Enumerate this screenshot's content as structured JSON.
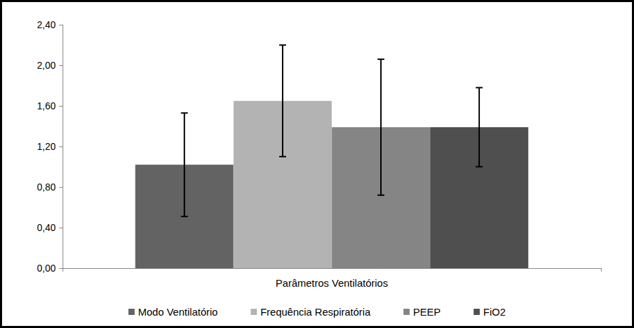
{
  "chart_data": {
    "type": "bar",
    "categories": [
      "Parâmetros Ventilatórios"
    ],
    "series": [
      {
        "name": "Modo Ventilatório",
        "color": "#636363",
        "values": [
          1.02
        ],
        "error": [
          0.51
        ]
      },
      {
        "name": "Frequência Respiratória",
        "color": "#b3b3b3",
        "values": [
          1.65
        ],
        "error": [
          0.55
        ]
      },
      {
        "name": "PEEP",
        "color": "#858585",
        "values": [
          1.39
        ],
        "error": [
          0.67
        ]
      },
      {
        "name": "FiO2",
        "color": "#4f4f4f",
        "values": [
          1.39
        ],
        "error": [
          0.39
        ]
      }
    ],
    "ylim": [
      0,
      2.4
    ],
    "yticks": [
      {
        "value": 0,
        "label": "0,00"
      },
      {
        "value": 0.4,
        "label": "0,40"
      },
      {
        "value": 0.8,
        "label": "0,80"
      },
      {
        "value": 1.2,
        "label": "1,20"
      },
      {
        "value": 1.6,
        "label": "1,60"
      },
      {
        "value": 2.0,
        "label": "2,00"
      },
      {
        "value": 2.4,
        "label": "2,40"
      }
    ],
    "grid": false,
    "legend": "bottom"
  }
}
